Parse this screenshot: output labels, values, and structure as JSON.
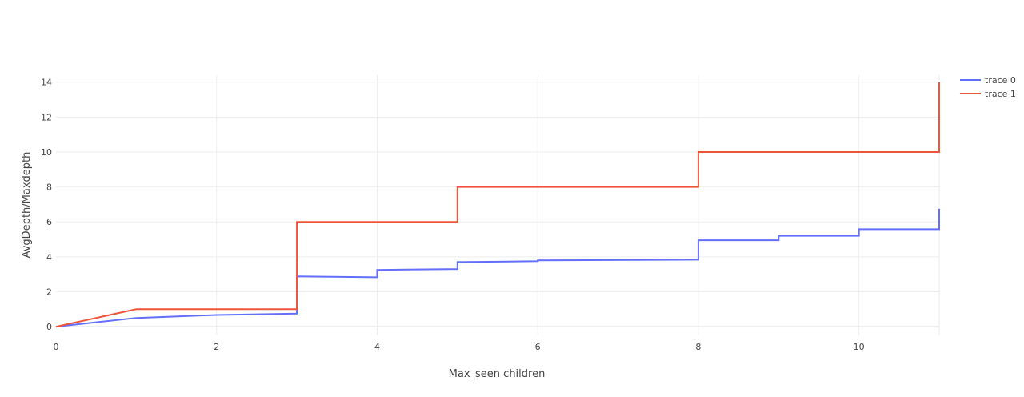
{
  "chart_data": {
    "type": "line",
    "line_shape": "step",
    "xlabel": "Max_seen children",
    "ylabel": "AvgDepth/Maxdepth",
    "xlim": [
      0,
      11
    ],
    "ylim": [
      -0.5,
      14.4
    ],
    "xticks": [
      0,
      2,
      4,
      6,
      8,
      10
    ],
    "yticks": [
      0,
      2,
      4,
      6,
      8,
      10,
      12,
      14
    ],
    "grid": true,
    "legend_position": "top-right",
    "series": [
      {
        "name": "trace 0",
        "color": "#636efa",
        "points": [
          [
            0,
            0
          ],
          [
            1,
            0.5
          ],
          [
            2,
            0.67
          ],
          [
            3,
            0.75
          ],
          [
            3,
            2.88
          ],
          [
            4,
            2.83
          ],
          [
            4,
            3.25
          ],
          [
            5,
            3.3
          ],
          [
            5,
            3.7
          ],
          [
            6,
            3.75
          ],
          [
            6,
            3.8
          ],
          [
            8,
            3.84
          ],
          [
            8,
            4.95
          ],
          [
            9,
            4.95
          ],
          [
            9,
            5.2
          ],
          [
            10,
            5.2
          ],
          [
            10,
            5.58
          ],
          [
            11,
            5.58
          ],
          [
            11,
            6.75
          ]
        ]
      },
      {
        "name": "trace 1",
        "color": "#ef553b",
        "points": [
          [
            0,
            0
          ],
          [
            1,
            1
          ],
          [
            3,
            1
          ],
          [
            3,
            6
          ],
          [
            5,
            6
          ],
          [
            5,
            8
          ],
          [
            8,
            8
          ],
          [
            8,
            10
          ],
          [
            11,
            10
          ],
          [
            11,
            14
          ]
        ]
      }
    ]
  }
}
